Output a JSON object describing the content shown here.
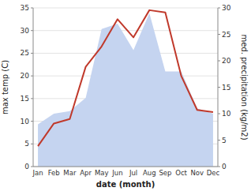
{
  "chart_data": {
    "type": "line",
    "categories": [
      "Jan",
      "Feb",
      "Mar",
      "Apr",
      "May",
      "Jun",
      "Jul",
      "Aug",
      "Sep",
      "Oct",
      "Nov",
      "Dec"
    ],
    "series": [
      {
        "type": "area",
        "axis": "y2",
        "color": "#c5d4f0",
        "values": [
          8,
          10,
          10.5,
          13,
          26,
          27,
          22,
          29,
          18,
          18,
          11,
          10
        ]
      },
      {
        "type": "line",
        "color": "#c0392b",
        "values": [
          4.5,
          9.5,
          10.5,
          22.0,
          26.5,
          32.5,
          28.5,
          34.5,
          34.0,
          20.0,
          12.5,
          12.0
        ]
      }
    ],
    "x_label": "date (month)",
    "y_label": "max temp (C)",
    "y2_label": "med. precipitation (kg/m2)",
    "ylim": [
      0,
      35
    ],
    "yticks": [
      0,
      5,
      10,
      15,
      20,
      25,
      30,
      35
    ],
    "y2lim": [
      0,
      30
    ],
    "y2ticks": [
      0,
      5,
      10,
      15,
      20,
      25,
      30
    ],
    "grid": true
  }
}
